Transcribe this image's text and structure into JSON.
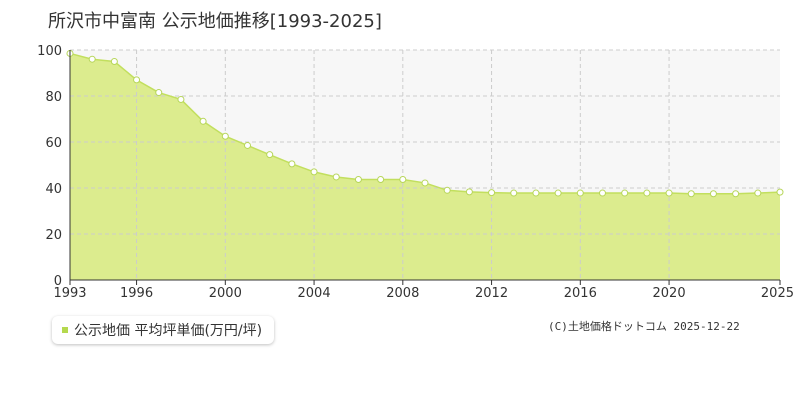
{
  "title": "所沢市中富南 公示地価推移[1993-2025]",
  "legend": {
    "label": "公示地価 平均坪単価(万円/坪)"
  },
  "credit": "(C)土地価格ドットコム 2025-12-22",
  "colors": {
    "fill": "#dcec8e",
    "line": "#c2df5e",
    "marker_stroke": "#b7d65a",
    "grid": "#cccccc",
    "plot_bg": "#f7f7f7"
  },
  "chart_data": {
    "type": "area",
    "title": "所沢市中富南 公示地価推移[1993-2025]",
    "xlabel": "",
    "ylabel": "",
    "x": [
      1993,
      1994,
      1995,
      1996,
      1997,
      1998,
      1999,
      2000,
      2001,
      2002,
      2003,
      2004,
      2005,
      2006,
      2007,
      2008,
      2009,
      2010,
      2011,
      2012,
      2013,
      2014,
      2015,
      2016,
      2017,
      2018,
      2019,
      2020,
      2021,
      2022,
      2023,
      2024,
      2025
    ],
    "series": [
      {
        "name": "公示地価 平均坪単価(万円/坪)",
        "values": [
          98.5,
          96,
          95,
          87,
          81.5,
          78.5,
          69,
          62.5,
          58.5,
          54.5,
          50.5,
          47,
          44.8,
          43.7,
          43.7,
          43.7,
          42.2,
          39,
          38.3,
          38,
          37.8,
          37.8,
          37.8,
          37.8,
          37.8,
          37.8,
          37.8,
          37.8,
          37.5,
          37.5,
          37.5,
          37.8,
          38.2
        ]
      }
    ],
    "xlim": [
      1993,
      2025
    ],
    "ylim": [
      0,
      100
    ],
    "x_ticks": [
      "1993",
      "1996",
      "2000",
      "2004",
      "2008",
      "2012",
      "2016",
      "2020",
      "2025"
    ],
    "y_ticks": [
      "0",
      "20",
      "40",
      "60",
      "80",
      "100"
    ],
    "grid": true,
    "legend_position": "bottom-left"
  }
}
